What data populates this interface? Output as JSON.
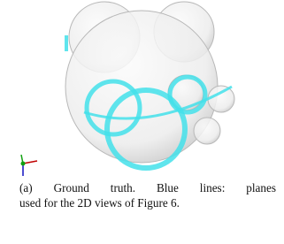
{
  "figure": {
    "caption_lines": [
      "(a) Ground truth. Blue lines: planes",
      "used for the 2D views of Figure 6."
    ]
  }
}
